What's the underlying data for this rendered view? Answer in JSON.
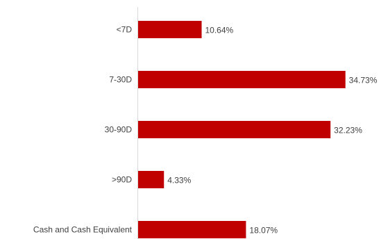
{
  "chart_data": {
    "type": "bar",
    "orientation": "horizontal",
    "categories": [
      "<7D",
      "7-30D",
      "30-90D",
      ">90D",
      "Cash and Cash Equivalent"
    ],
    "values": [
      10.64,
      34.73,
      32.23,
      4.33,
      18.07
    ],
    "value_labels": [
      "10.64%",
      "34.73%",
      "32.23%",
      "4.33%",
      "18.07%"
    ],
    "bar_color": "#c00000",
    "xlim": [
      0,
      35
    ],
    "grid": false,
    "legend": "none",
    "title": "",
    "xlabel": "",
    "ylabel": ""
  }
}
